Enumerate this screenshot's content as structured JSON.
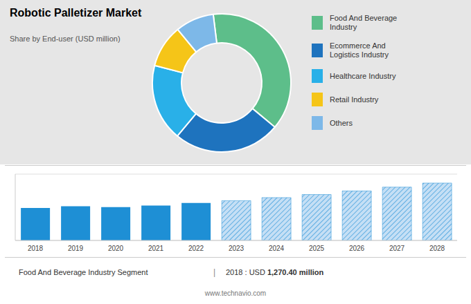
{
  "chart_data": [
    {
      "type": "pie",
      "title": "Robotic Palletizer Market",
      "subtitle": "Share by End-user (USD million)",
      "categories": [
        "Food And Beverage\nIndustry",
        "Ecommerce And\nLogistics Industry",
        "Healthcare Industry",
        "Retail Industry",
        "Others"
      ],
      "values": [
        38,
        25,
        18,
        10,
        9
      ],
      "colors": [
        "#5dbe8a",
        "#1e73be",
        "#29b0e8",
        "#f5c518",
        "#7db8e8"
      ],
      "legend": "right"
    },
    {
      "type": "bar",
      "categories": [
        "2018",
        "2019",
        "2020",
        "2021",
        "2022",
        "2023",
        "2024",
        "2025",
        "2026",
        "2027",
        "2028"
      ],
      "values": [
        1270,
        1340,
        1310,
        1370,
        1470,
        1560,
        1680,
        1800,
        1940,
        2090,
        2250
      ],
      "colors": [
        "#1e8fd5",
        "#1e8fd5",
        "#1e8fd5",
        "#1e8fd5",
        "#1e8fd5",
        "#c5dff5",
        "#c5dff5",
        "#c5dff5",
        "#c5dff5",
        "#c5dff5",
        "#c5dff5"
      ],
      "ylim": [
        0,
        2600
      ],
      "yticks": [
        0,
        500,
        1000,
        1500,
        2000,
        2500
      ],
      "grid": true,
      "tick_labels": "x",
      "annotations": [
        "Food And Beverage Industry Segment",
        "|",
        "2018 : USD ",
        "1,270.40 million",
        "www.technavio.com"
      ]
    }
  ]
}
